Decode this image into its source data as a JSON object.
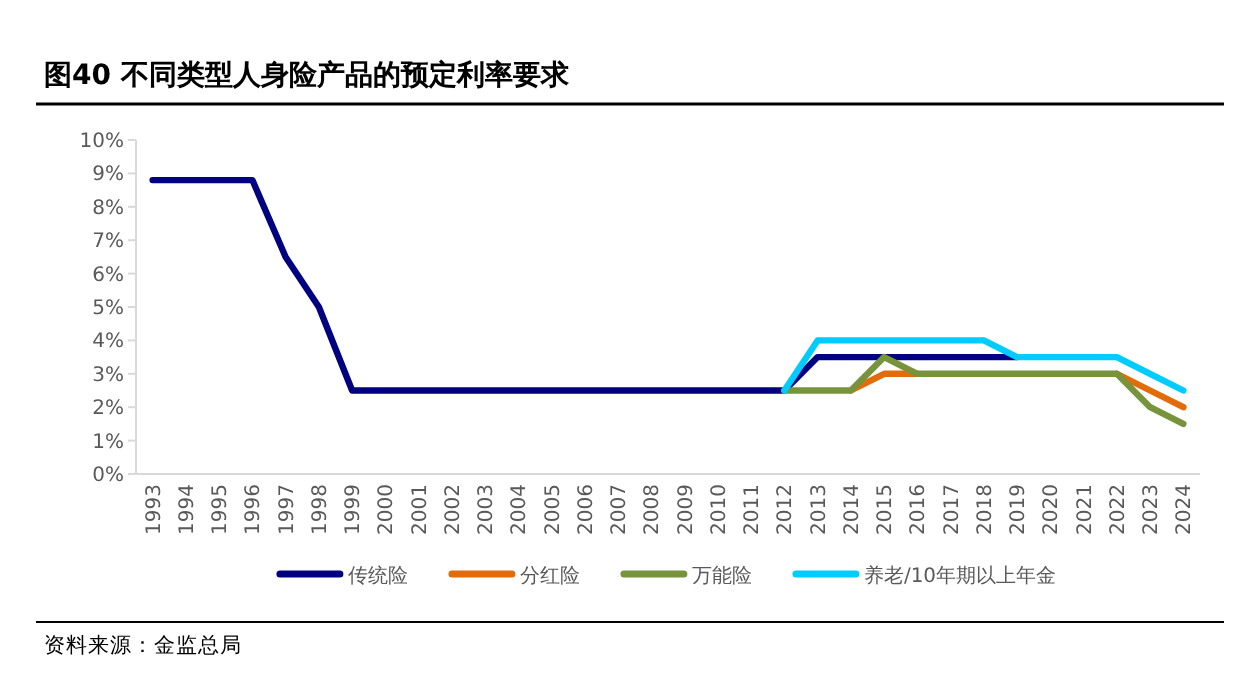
{
  "chart_data": {
    "type": "line",
    "title": "图40 不同类型人身险产品的预定利率要求",
    "categories": [
      "1993",
      "1994",
      "1995",
      "1996",
      "1997",
      "1998",
      "1999",
      "2000",
      "2001",
      "2002",
      "2003",
      "2004",
      "2005",
      "2006",
      "2007",
      "2008",
      "2009",
      "2010",
      "2011",
      "2012",
      "2013",
      "2014",
      "2015",
      "2016",
      "2017",
      "2018",
      "2019",
      "2020",
      "2021",
      "2022",
      "2023",
      "2024"
    ],
    "series": [
      {
        "name": "传统险",
        "color": "#000080",
        "values": [
          8.8,
          8.8,
          8.8,
          8.8,
          6.5,
          5.0,
          2.5,
          2.5,
          2.5,
          2.5,
          2.5,
          2.5,
          2.5,
          2.5,
          2.5,
          2.5,
          2.5,
          2.5,
          2.5,
          2.5,
          3.5,
          3.5,
          3.5,
          3.5,
          3.5,
          3.5,
          3.5,
          null,
          null,
          null,
          null,
          null
        ]
      },
      {
        "name": "分红险",
        "color": "#e36c0a",
        "values": [
          null,
          null,
          null,
          null,
          null,
          null,
          null,
          null,
          null,
          null,
          null,
          null,
          null,
          null,
          null,
          null,
          null,
          null,
          null,
          null,
          null,
          2.5,
          3.0,
          3.0,
          null,
          null,
          null,
          null,
          null,
          3.0,
          2.5,
          2.0
        ]
      },
      {
        "name": "万能险",
        "color": "#77933c",
        "values": [
          null,
          null,
          null,
          null,
          null,
          null,
          null,
          null,
          null,
          null,
          null,
          null,
          null,
          null,
          null,
          null,
          null,
          null,
          null,
          2.5,
          2.5,
          2.5,
          3.5,
          3.0,
          3.0,
          3.0,
          3.0,
          3.0,
          3.0,
          3.0,
          2.0,
          1.5
        ]
      },
      {
        "name": "养老/10年期以上年金",
        "color": "#00ccff",
        "values": [
          null,
          null,
          null,
          null,
          null,
          null,
          null,
          null,
          null,
          null,
          null,
          null,
          null,
          null,
          null,
          null,
          null,
          null,
          null,
          2.5,
          4.0,
          4.0,
          4.0,
          4.0,
          4.0,
          4.0,
          3.5,
          3.5,
          3.5,
          3.5,
          3.0,
          2.5
        ]
      }
    ],
    "ylim": [
      0,
      10
    ],
    "yticks": [
      {
        "value": 0,
        "label": "0%"
      },
      {
        "value": 1,
        "label": "1%"
      },
      {
        "value": 2,
        "label": "2%"
      },
      {
        "value": 3,
        "label": "3%"
      },
      {
        "value": 4,
        "label": "4%"
      },
      {
        "value": 5,
        "label": "5%"
      },
      {
        "value": 6,
        "label": "6%"
      },
      {
        "value": 7,
        "label": "7%"
      },
      {
        "value": 8,
        "label": "8%"
      },
      {
        "value": 9,
        "label": "9%"
      },
      {
        "value": 10,
        "label": "10%"
      }
    ],
    "grid": false,
    "legend": "bottom",
    "line_style": "solid",
    "annotations": [
      "资料来源：金监总局"
    ]
  }
}
